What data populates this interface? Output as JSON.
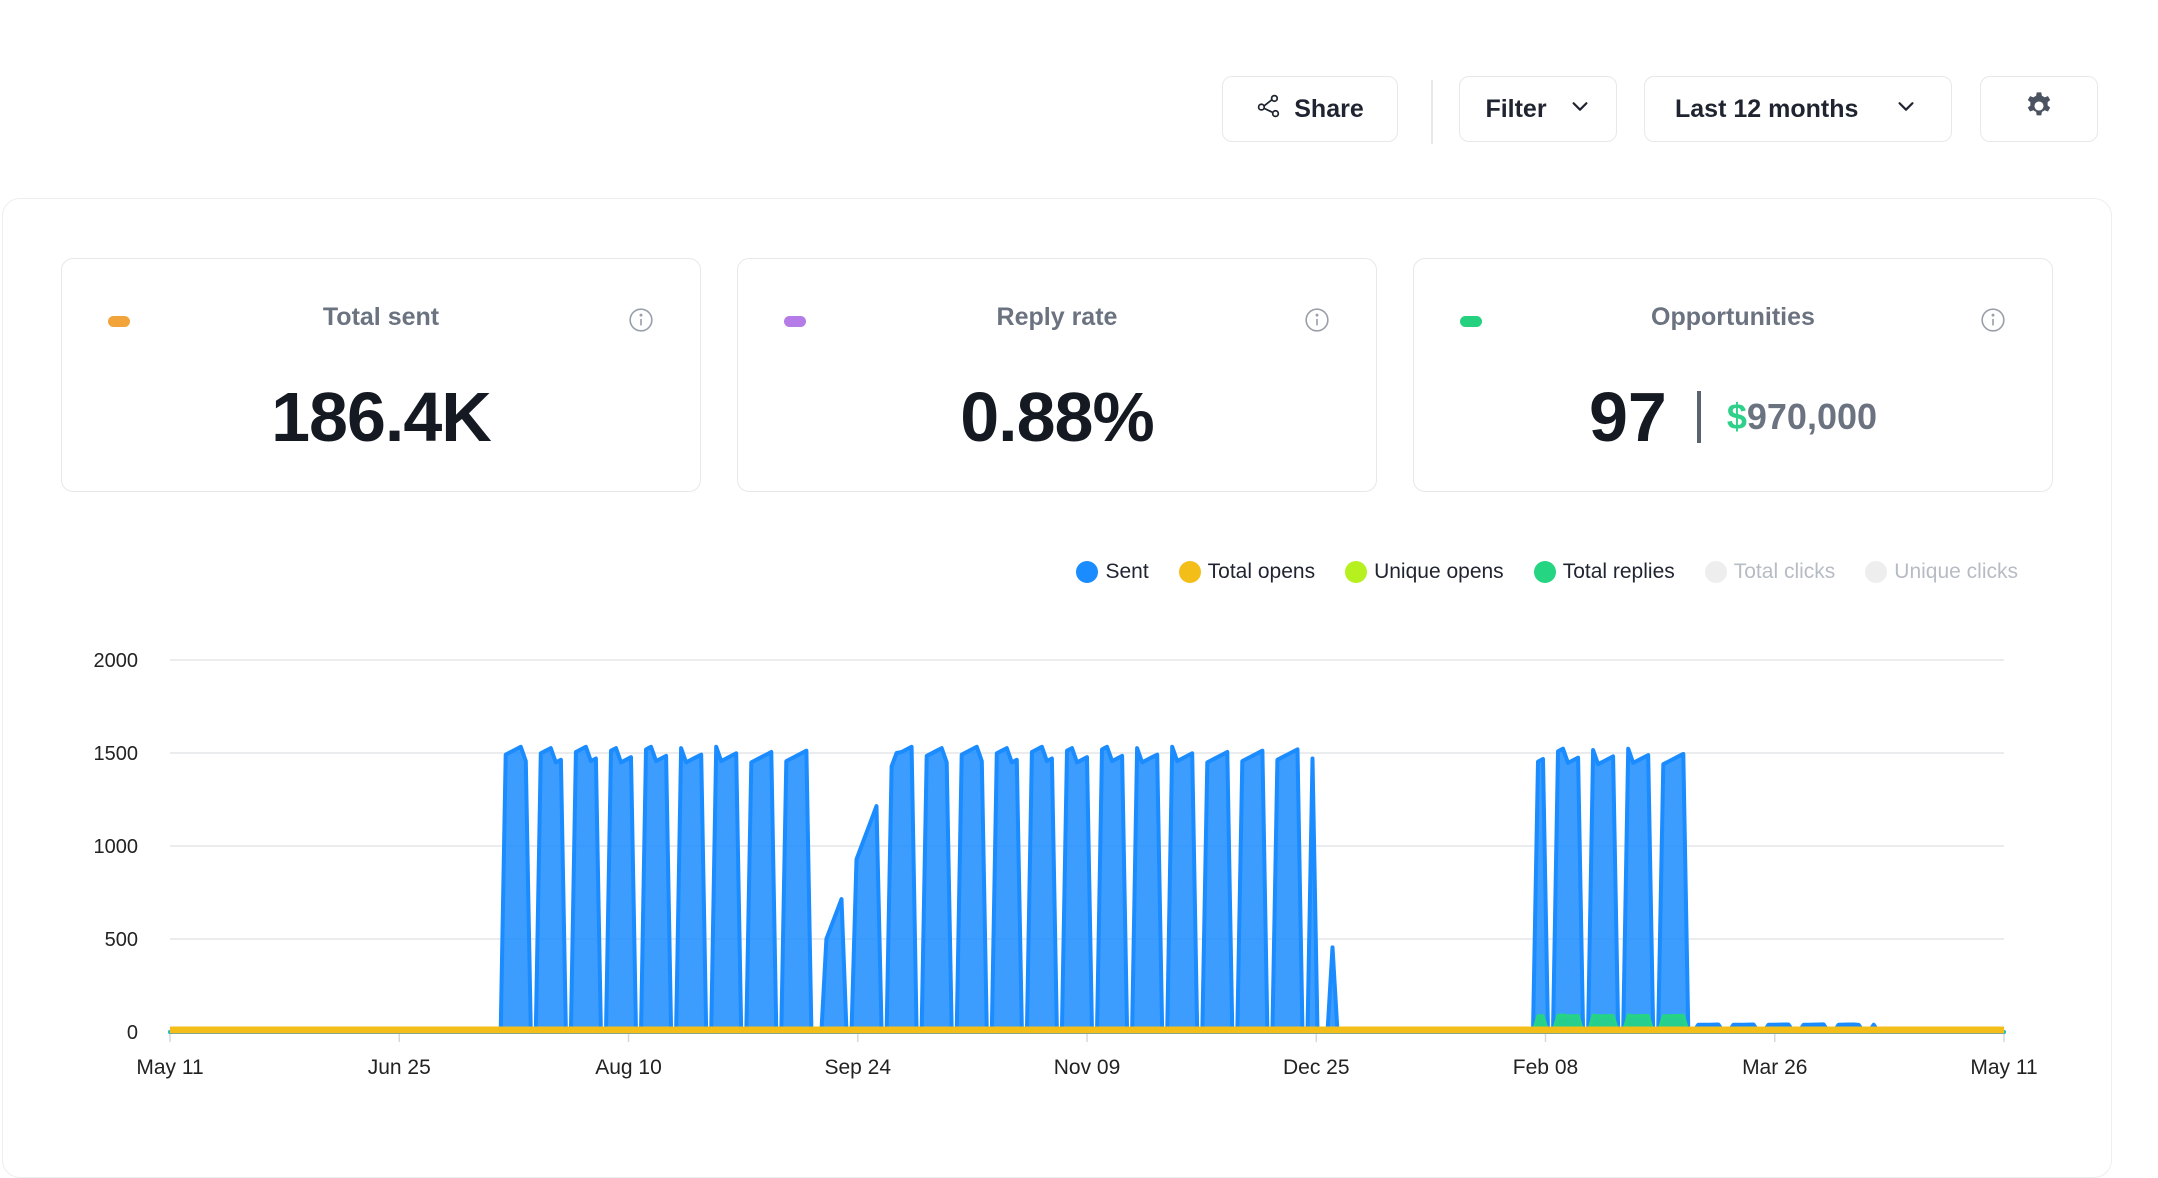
{
  "toolbar": {
    "share_label": "Share",
    "filter_label": "Filter",
    "range_label": "Last 12 months",
    "icons": {
      "share": "share-icon",
      "filter_caret": "chevron-down-icon",
      "range_caret": "chevron-down-icon",
      "settings": "gear-icon"
    }
  },
  "cards": {
    "sent": {
      "title": "Total sent",
      "value": "186.4K",
      "color": "#f2a33a"
    },
    "reply": {
      "title": "Reply rate",
      "value": "0.88%",
      "color": "#b57be6"
    },
    "opps": {
      "title": "Opportunities",
      "count": "97",
      "currency": "$",
      "amount": "970,000",
      "color": "#25d07f"
    }
  },
  "legend": [
    {
      "label": "Sent",
      "color": "#1a8cff",
      "active": true
    },
    {
      "label": "Total opens",
      "color": "#f4be19",
      "active": true
    },
    {
      "label": "Unique opens",
      "color": "#b6f01e",
      "active": true
    },
    {
      "label": "Total replies",
      "color": "#25d582",
      "active": true
    },
    {
      "label": "Total clicks",
      "color": "#eeeeee",
      "active": false
    },
    {
      "label": "Unique clicks",
      "color": "#eeeeee",
      "active": false
    }
  ],
  "chart_data": {
    "type": "area",
    "xlim": [
      "2023-05-11",
      "2024-05-11"
    ],
    "x_ticks": [
      "May 11",
      "Jun 25",
      "Aug 10",
      "Sep 24",
      "Nov 09",
      "Dec 25",
      "Feb 08",
      "Mar 26",
      "May 11"
    ],
    "y_ticks": [
      0,
      500,
      1000,
      1500,
      2000
    ],
    "ylim": [
      0,
      2000
    ],
    "grid": true,
    "legend_position": "top-right",
    "series": [
      {
        "name": "Sent",
        "color": "#1a8cff",
        "ranges": [
          {
            "start": "2023-07-16",
            "end": "2023-09-15",
            "peak": 1510
          },
          {
            "start": "2023-09-19",
            "end": "2023-10-03",
            "ramp_from": 500,
            "ramp_to": 1500
          },
          {
            "start": "2023-10-04",
            "end": "2023-12-25",
            "peak": 1510
          },
          {
            "start": "2023-12-29",
            "end": "2023-12-31",
            "peak": 450
          },
          {
            "start": "2024-02-08",
            "end": "2024-03-10",
            "peak": 1500
          },
          {
            "start": "2024-03-11",
            "end": "2024-04-15",
            "peak": 40
          }
        ]
      },
      {
        "name": "Total opens",
        "color": "#f4be19",
        "constant": 0
      },
      {
        "name": "Unique opens",
        "color": "#b6f01e",
        "constant": 0
      },
      {
        "name": "Total replies",
        "color": "#25d582",
        "ranges": [
          {
            "start": "2023-09-24",
            "end": "2023-12-25",
            "peak": 10
          },
          {
            "start": "2024-02-08",
            "end": "2024-03-10",
            "peak": 90
          }
        ]
      }
    ]
  }
}
